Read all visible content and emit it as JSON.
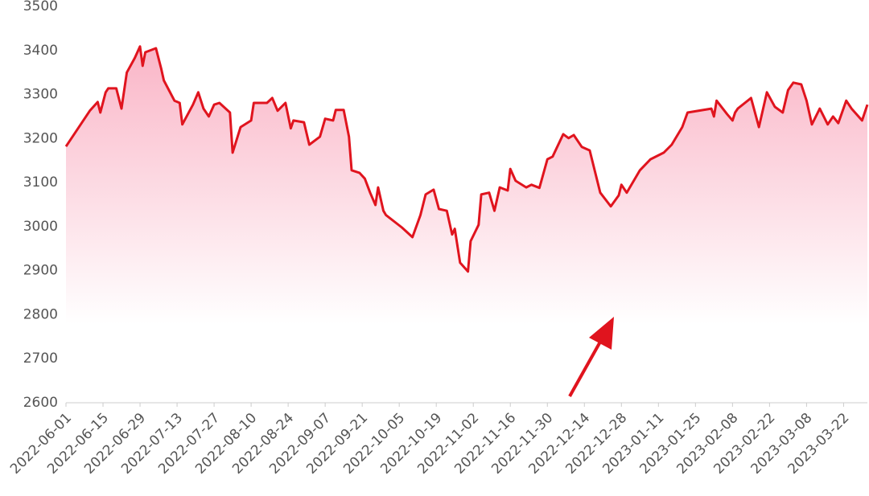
{
  "chart_data": {
    "type": "area-line",
    "color": "#e0141e",
    "fill_color": "#f9a8bd",
    "x": [
      "2022-06-01",
      "2022-06-08",
      "2022-06-10",
      "2022-06-13",
      "2022-06-14",
      "2022-06-16",
      "2022-06-17",
      "2022-06-20",
      "2022-06-22",
      "2022-06-24",
      "2022-06-27",
      "2022-06-29",
      "2022-06-30",
      "2022-07-01",
      "2022-07-05",
      "2022-07-07",
      "2022-07-08",
      "2022-07-12",
      "2022-07-14",
      "2022-07-15",
      "2022-07-19",
      "2022-07-21",
      "2022-07-23",
      "2022-07-25",
      "2022-07-27",
      "2022-07-29",
      "2022-08-02",
      "2022-08-03",
      "2022-08-06",
      "2022-08-10",
      "2022-08-11",
      "2022-08-16",
      "2022-08-18",
      "2022-08-20",
      "2022-08-23",
      "2022-08-25",
      "2022-08-26",
      "2022-08-30",
      "2022-09-01",
      "2022-09-05",
      "2022-09-07",
      "2022-09-10",
      "2022-09-11",
      "2022-09-14",
      "2022-09-16",
      "2022-09-17",
      "2022-09-20",
      "2022-09-22",
      "2022-09-24",
      "2022-09-26",
      "2022-09-27",
      "2022-09-29",
      "2022-09-30",
      "2022-10-06",
      "2022-10-10",
      "2022-10-13",
      "2022-10-15",
      "2022-10-18",
      "2022-10-20",
      "2022-10-23",
      "2022-10-25",
      "2022-10-26",
      "2022-10-28",
      "2022-10-31",
      "2022-11-01",
      "2022-11-04",
      "2022-11-05",
      "2022-11-08",
      "2022-11-10",
      "2022-11-12",
      "2022-11-15",
      "2022-11-16",
      "2022-11-18",
      "2022-11-22",
      "2022-11-24",
      "2022-11-27",
      "2022-11-30",
      "2022-12-02",
      "2022-12-06",
      "2022-12-08",
      "2022-12-10",
      "2022-12-13",
      "2022-12-16",
      "2022-12-20",
      "2022-12-24",
      "2022-12-27",
      "2022-12-28",
      "2022-12-30",
      "2023-01-04",
      "2023-01-08",
      "2023-01-13",
      "2023-01-16",
      "2023-01-20",
      "2023-01-22",
      "2023-01-31",
      "2023-02-01",
      "2023-02-02",
      "2023-02-06",
      "2023-02-08",
      "2023-02-09",
      "2023-02-10",
      "2023-02-15",
      "2023-02-18",
      "2023-02-21",
      "2023-02-24",
      "2023-02-27",
      "2023-03-01",
      "2023-03-03",
      "2023-03-06",
      "2023-03-08",
      "2023-03-10",
      "2023-03-13",
      "2023-03-16",
      "2023-03-18",
      "2023-03-20",
      "2023-03-23",
      "2023-03-25",
      "2023-03-29",
      "2023-03-31"
    ],
    "values": [
      3182,
      3245,
      3263,
      3283,
      3259,
      3305,
      3314,
      3314,
      3268,
      3350,
      3383,
      3409,
      3365,
      3396,
      3405,
      3359,
      3332,
      3286,
      3281,
      3232,
      3277,
      3305,
      3268,
      3250,
      3277,
      3281,
      3259,
      3168,
      3226,
      3241,
      3281,
      3281,
      3292,
      3263,
      3281,
      3223,
      3241,
      3237,
      3186,
      3204,
      3245,
      3241,
      3265,
      3265,
      3204,
      3128,
      3122,
      3109,
      3077,
      3049,
      3089,
      3036,
      3026,
      2998,
      2976,
      3026,
      3073,
      3084,
      3040,
      3036,
      2982,
      2995,
      2918,
      2898,
      2967,
      3004,
      3073,
      3077,
      3036,
      3089,
      3082,
      3131,
      3104,
      3089,
      3095,
      3088,
      3153,
      3159,
      3210,
      3201,
      3208,
      3181,
      3173,
      3077,
      3046,
      3071,
      3095,
      3077,
      3128,
      3153,
      3168,
      3186,
      3226,
      3259,
      3268,
      3250,
      3286,
      3255,
      3241,
      3259,
      3268,
      3292,
      3226,
      3305,
      3272,
      3259,
      3310,
      3327,
      3323,
      3286,
      3232,
      3268,
      3232,
      3250,
      3235,
      3286,
      3268,
      3241,
      3277
    ],
    "xlim": [
      "2022-06-01",
      "2023-03-31"
    ],
    "xticks": [
      "2022-06-01",
      "2022-06-15",
      "2022-06-29",
      "2022-07-13",
      "2022-07-27",
      "2022-08-10",
      "2022-08-24",
      "2022-09-07",
      "2022-09-21",
      "2022-10-05",
      "2022-10-19",
      "2022-11-02",
      "2022-11-16",
      "2022-11-30",
      "2022-12-14",
      "2022-12-28",
      "2023-01-11",
      "2023-01-25",
      "2023-02-08",
      "2023-02-22",
      "2023-03-08",
      "2023-03-22"
    ],
    "ylim": [
      2600,
      3500
    ],
    "yticks": [
      2600,
      2700,
      2800,
      2900,
      3000,
      3100,
      3200,
      3300,
      3400,
      3500
    ]
  }
}
